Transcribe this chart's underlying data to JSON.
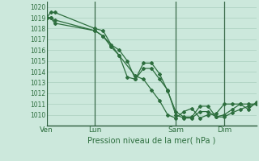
{
  "bg_color": "#cce8dc",
  "grid_color": "#aacfbe",
  "line_color": "#2d6e3e",
  "marker_color": "#2d6e3e",
  "xlabel": "Pression niveau de la mer( hPa )",
  "ylim": [
    1009.0,
    1020.5
  ],
  "yticks": [
    1010,
    1011,
    1012,
    1013,
    1014,
    1015,
    1016,
    1017,
    1018,
    1019,
    1020
  ],
  "day_labels": [
    "Ven",
    "Lun",
    "Sam",
    "Dim"
  ],
  "day_positions": [
    0,
    72,
    192,
    264
  ],
  "total_hours": 312,
  "series1_x": [
    0,
    6,
    12,
    72,
    84,
    96,
    108,
    120,
    132,
    144,
    156,
    168,
    180,
    192,
    204,
    216,
    228,
    240,
    252,
    264,
    276,
    288,
    300,
    312
  ],
  "series1_y": [
    1019.0,
    1019.5,
    1019.5,
    1018.0,
    1017.8,
    1016.5,
    1015.5,
    1013.5,
    1013.3,
    1014.8,
    1014.8,
    1013.8,
    1012.2,
    1010.3,
    1009.8,
    1009.8,
    1010.8,
    1010.8,
    1009.8,
    1010.0,
    1010.5,
    1011.0,
    1011.0,
    1011.0
  ],
  "series2_x": [
    0,
    6,
    12,
    72,
    84,
    96,
    108,
    120,
    132,
    144,
    156,
    168,
    180,
    192,
    204,
    216,
    228,
    240,
    252,
    264,
    276,
    288,
    300,
    312
  ],
  "series2_y": [
    1019.0,
    1019.0,
    1018.8,
    1017.8,
    1017.3,
    1016.5,
    1016.0,
    1015.0,
    1013.3,
    1014.3,
    1014.3,
    1013.3,
    1012.3,
    1010.0,
    1009.7,
    1009.7,
    1010.3,
    1010.3,
    1009.8,
    1009.8,
    1010.2,
    1010.5,
    1010.8,
    1011.0
  ],
  "series3_x": [
    0,
    6,
    12,
    72,
    84,
    96,
    108,
    132,
    144,
    156,
    168,
    180,
    192,
    204,
    216,
    228,
    240,
    252,
    264,
    276,
    288,
    300,
    312
  ],
  "series3_y": [
    1019.0,
    1019.0,
    1018.5,
    1017.8,
    1017.3,
    1016.3,
    1015.5,
    1013.6,
    1013.3,
    1012.3,
    1011.3,
    1010.0,
    1009.7,
    1010.3,
    1010.6,
    1009.7,
    1010.0,
    1010.1,
    1011.0,
    1011.0,
    1011.0,
    1010.5,
    1011.2
  ]
}
